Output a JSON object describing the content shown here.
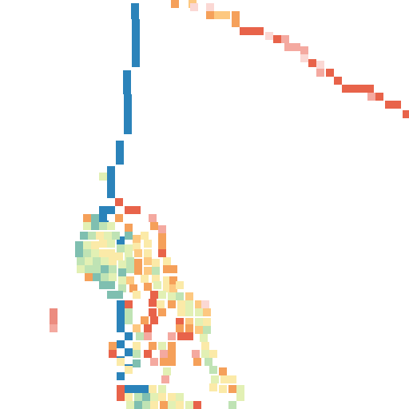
{
  "map": {
    "background": "#ffffff",
    "palette": {
      "blue": "#2b83ba",
      "teal": "#7fbfb0",
      "mint": "#bfe3b4",
      "lightgreen": "#e2f0b4",
      "cream": "#fbeaa8",
      "peach": "#fdc880",
      "orange": "#f5a05a",
      "redorange": "#e8634a",
      "pink": "#f4a9a0",
      "lightpink": "#fbd8d4",
      "salmon": "#ec8c80"
    }
  }
}
